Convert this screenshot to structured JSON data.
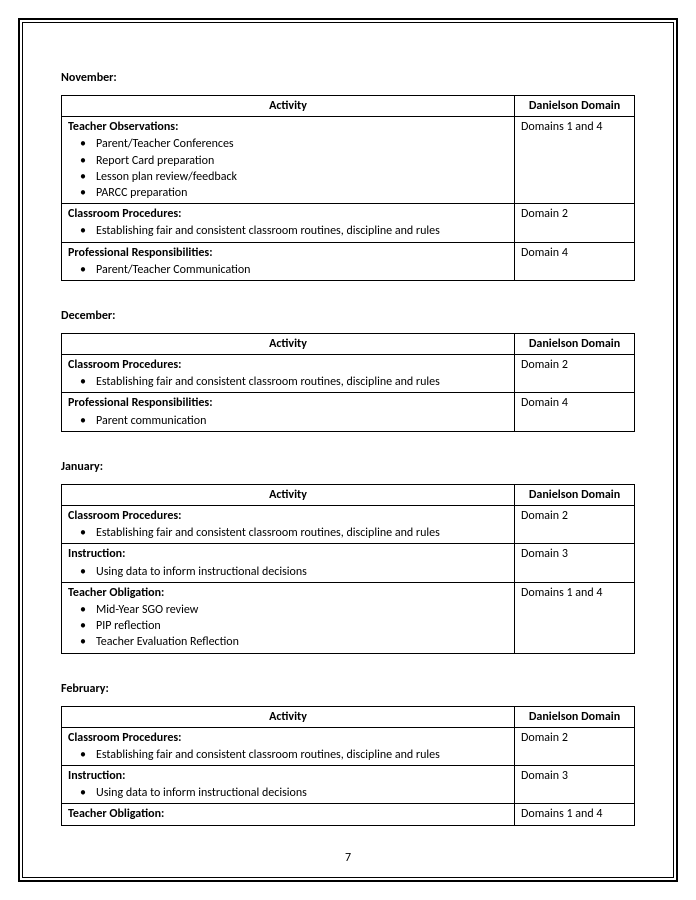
{
  "pageNumber": "7",
  "columns": {
    "activity": "Activity",
    "domain": "Danielson Domain"
  },
  "sections": [
    {
      "title": "November:",
      "rows": [
        {
          "heading": "Teacher Observations:",
          "bullets": [
            "Parent/Teacher Conferences",
            "Report Card preparation",
            "Lesson plan review/feedback",
            "PARCC preparation"
          ],
          "domain": "Domains 1 and 4"
        },
        {
          "heading": "Classroom Procedures:",
          "bullets": [
            "Establishing fair and consistent classroom routines, discipline and rules"
          ],
          "domain": "Domain 2"
        },
        {
          "heading": "Professional Responsibilities:",
          "bullets": [
            "Parent/Teacher Communication"
          ],
          "domain": "Domain 4"
        }
      ]
    },
    {
      "title": "December:",
      "rows": [
        {
          "heading": "Classroom Procedures:",
          "bullets": [
            "Establishing fair and consistent classroom routines, discipline and rules"
          ],
          "domain": "Domain 2"
        },
        {
          "heading": "Professional Responsibilities:",
          "bullets": [
            "Parent communication"
          ],
          "domain": "Domain 4"
        }
      ]
    },
    {
      "title": "January:",
      "rows": [
        {
          "heading": "Classroom Procedures:",
          "bullets": [
            "Establishing fair and consistent classroom routines, discipline and rules"
          ],
          "domain": "Domain 2"
        },
        {
          "heading": "Instruction:",
          "bullets": [
            "Using data to inform instructional decisions"
          ],
          "domain": "Domain 3"
        },
        {
          "heading": "Teacher Obligation:",
          "bullets": [
            "Mid-Year SGO review",
            "PIP reflection",
            "Teacher Evaluation Reflection"
          ],
          "domain": "Domains 1 and 4"
        }
      ]
    },
    {
      "title": "February:",
      "rows": [
        {
          "heading": "Classroom Procedures:",
          "bullets": [
            "Establishing fair and consistent classroom routines, discipline and rules"
          ],
          "domain": "Domain 2"
        },
        {
          "heading": "Instruction:",
          "bullets": [
            "Using data to inform instructional decisions"
          ],
          "domain": "Domain 3"
        },
        {
          "heading": "Teacher Obligation:",
          "bullets": [],
          "domain": "Domains 1 and 4"
        }
      ]
    }
  ]
}
